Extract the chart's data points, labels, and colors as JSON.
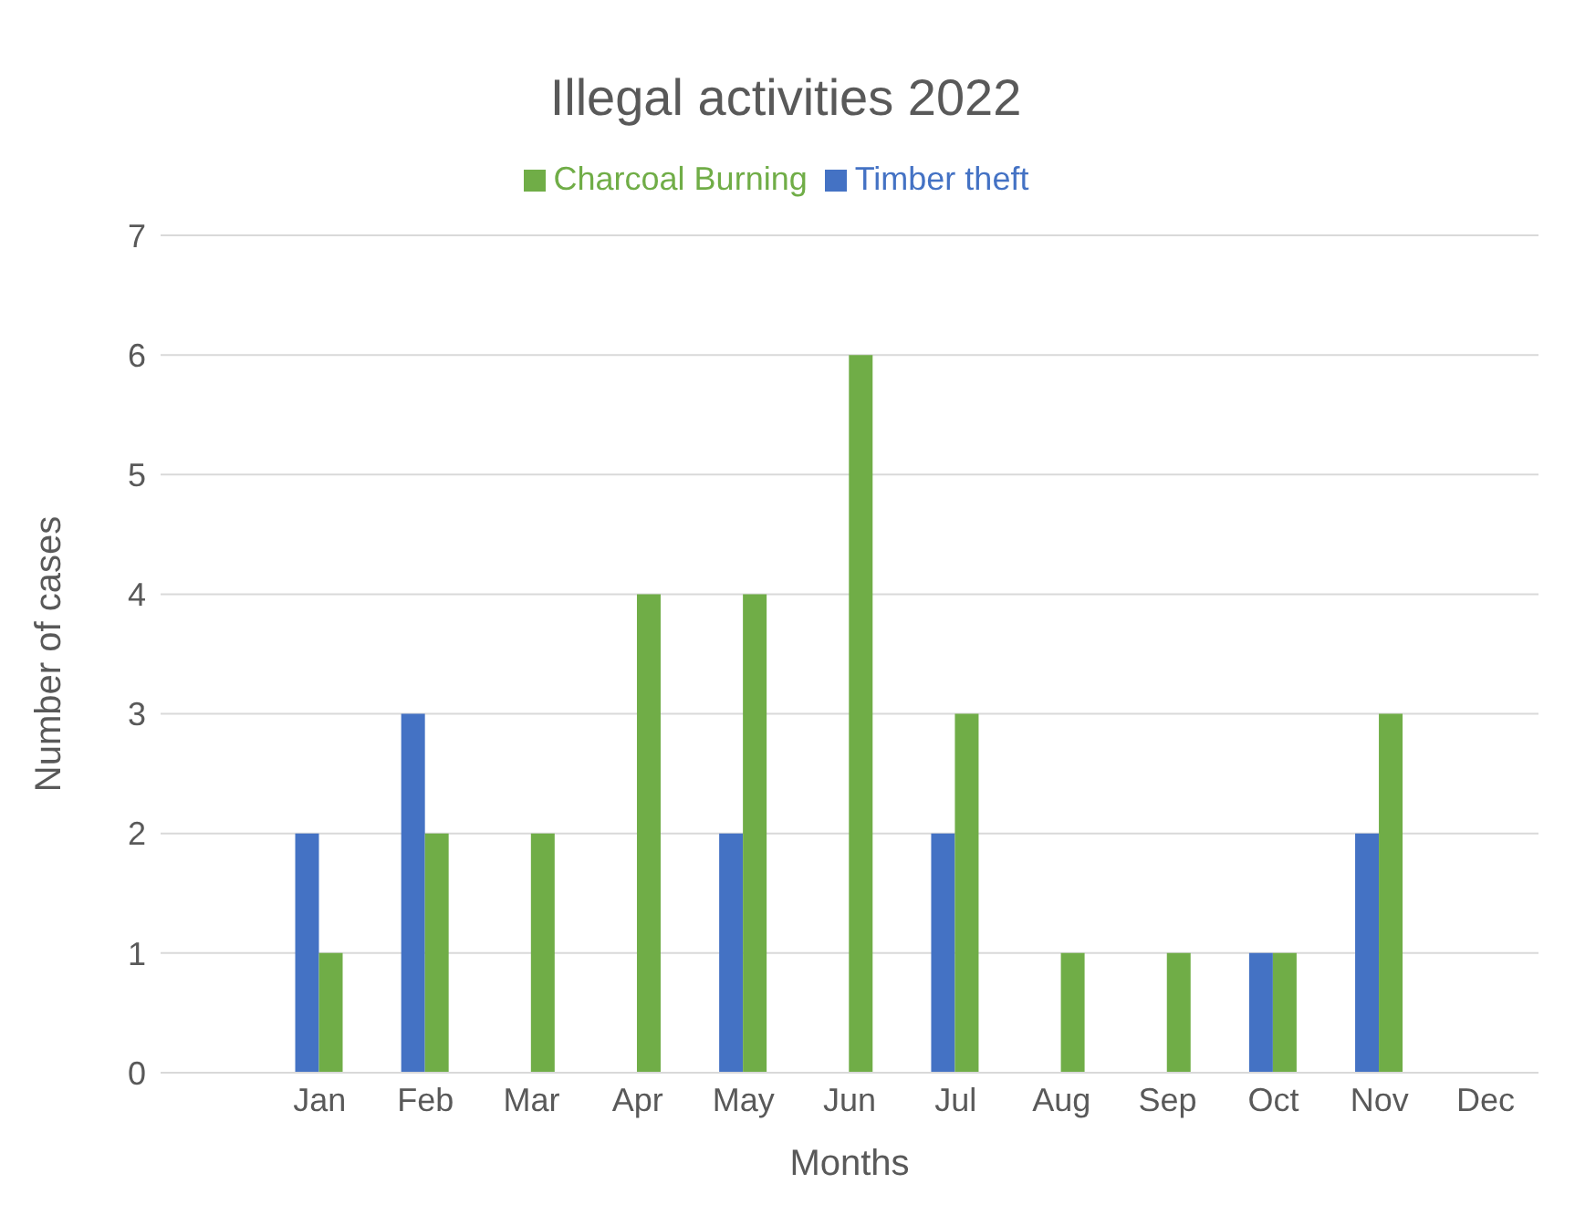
{
  "chart_data": {
    "type": "bar",
    "title": "Illegal activities 2022",
    "xlabel": "Months",
    "ylabel": "Number of cases",
    "categories": [
      null,
      "Jan",
      "Feb",
      "Mar",
      "Apr",
      "May",
      "Jun",
      "Jul",
      "Aug",
      "Sep",
      "Oct",
      "Nov",
      "Dec"
    ],
    "series": [
      {
        "name": "Timber theft",
        "color": "#4472c4",
        "values": [
          null,
          2,
          3,
          0,
          0,
          2,
          0,
          2,
          0,
          0,
          1,
          2,
          0
        ]
      },
      {
        "name": "Charcoal Burning",
        "color": "#70ad47",
        "values": [
          null,
          1,
          2,
          2,
          4,
          4,
          6,
          3,
          1,
          1,
          1,
          3,
          0
        ]
      }
    ],
    "ylim": [
      0,
      7
    ],
    "yticks": [
      0,
      1,
      2,
      3,
      4,
      5,
      6,
      7
    ],
    "grid": "y",
    "legend": "top"
  }
}
